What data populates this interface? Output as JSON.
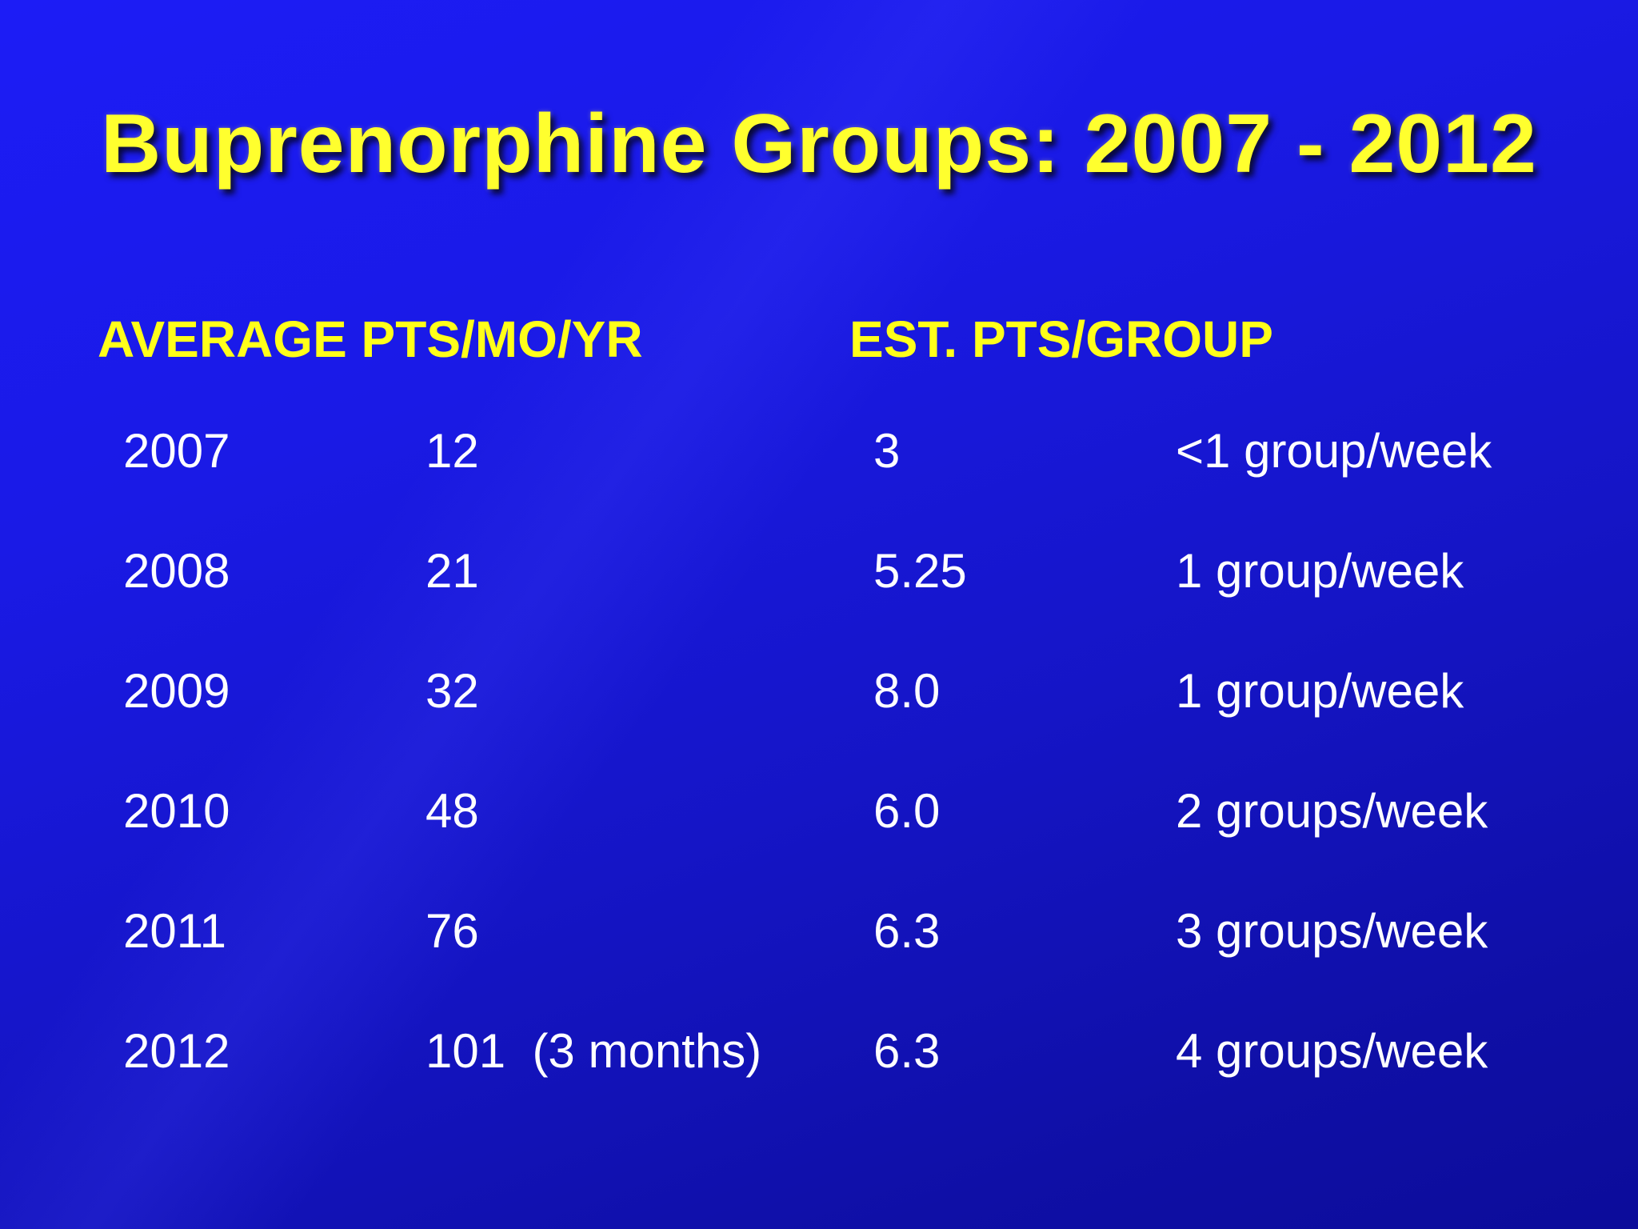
{
  "slide": {
    "title": "Buprenorphine Groups: 2007 - 2012",
    "headers": {
      "left": "AVERAGE PTS/MO/YR",
      "right": "EST. PTS/GROUP"
    },
    "rows": [
      {
        "year": "2007",
        "avg": "12",
        "est": "3",
        "freq": "<1 group/week"
      },
      {
        "year": "2008",
        "avg": "21",
        "est": "5.25",
        "freq": "1 group/week"
      },
      {
        "year": "2009",
        "avg": "32",
        "est": "8.0",
        "freq": "1 group/week"
      },
      {
        "year": "2010",
        "avg": "48",
        "est": "6.0",
        "freq": "2 groups/week"
      },
      {
        "year": "2011",
        "avg": "76",
        "est": "6.3",
        "freq": "3 groups/week"
      },
      {
        "year": "2012",
        "avg": "101  (3 months)",
        "est": "6.3",
        "freq": "4 groups/week"
      }
    ]
  },
  "colors": {
    "background": "#1a1ae0",
    "title": "#ffff2e",
    "header": "#ffff1a",
    "body_text": "#ffffff"
  }
}
